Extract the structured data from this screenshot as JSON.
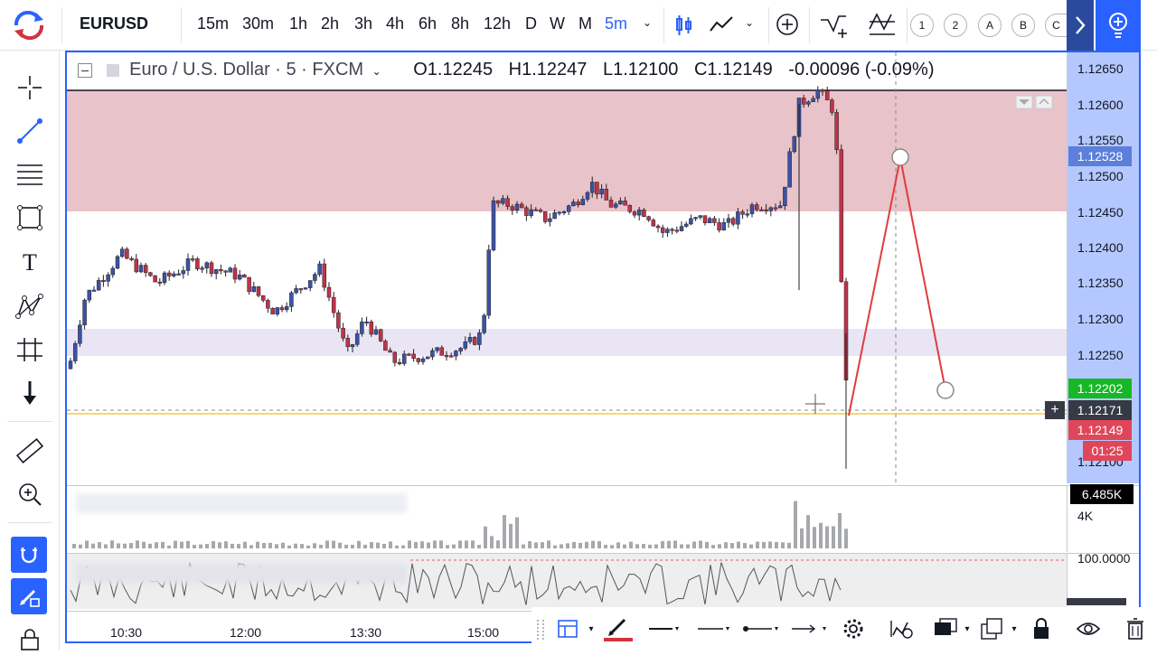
{
  "toolbar": {
    "symbol": "EURUSD",
    "intervals": [
      "15m",
      "30m",
      "1h",
      "2h",
      "3h",
      "4h",
      "6h",
      "8h",
      "12h",
      "D",
      "W",
      "M"
    ],
    "active_interval": "5m",
    "circles": [
      "1",
      "2",
      "A",
      "B",
      "C"
    ]
  },
  "legend": {
    "name": "Euro / U.S. Dollar · 5 · FXCM",
    "open": "O1.12245",
    "high": "H1.12247",
    "low": "L1.12100",
    "close": "C1.12149",
    "change": "-0.00096 (-0.09%)"
  },
  "price_axis": {
    "ticks": [
      "1.12650",
      "1.12600",
      "1.12550",
      "1.12500",
      "1.12450",
      "1.12400",
      "1.12350",
      "1.12300",
      "1.12250",
      "1.12100"
    ],
    "marker_blue": "1.12528",
    "marker_green": "1.12202",
    "marker_cross": "1.12171",
    "marker_red": "1.12149",
    "countdown": "01:25",
    "volume_max": "6.485K",
    "volume_tick": "4K",
    "osc_tick": "100.0000"
  },
  "time_axis": {
    "ticks": [
      "10:30",
      "12:00",
      "13:30",
      "15:00"
    ]
  },
  "colors": {
    "accent": "#2962ff",
    "bull": "#3b52a8",
    "bear": "#c0334b",
    "zone_red": "#e8c3c9",
    "zone_purple": "#e9e5f4"
  }
}
